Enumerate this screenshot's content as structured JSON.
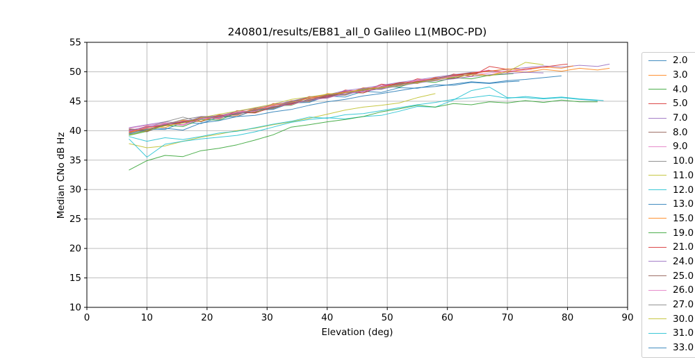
{
  "chart_data": {
    "type": "line",
    "title": "240801/results/EB81_all_0 Galileo L1(MBOC-PD)",
    "xlabel": "Elevation (deg)",
    "ylabel": "Median CNo dB Hz",
    "xlim": [
      0,
      90
    ],
    "ylim": [
      10,
      55
    ],
    "xticks": [
      0,
      10,
      20,
      30,
      40,
      50,
      60,
      70,
      80,
      90
    ],
    "yticks": [
      10,
      15,
      20,
      25,
      30,
      35,
      40,
      45,
      50,
      55
    ],
    "grid": true,
    "grid_color": "#b4b4b4",
    "axis_color": "#000000",
    "legend": {
      "position": "outside-right",
      "last_entry_clipped_by_image_edge": true,
      "entries": [
        {
          "label": "2.0",
          "color": "#1f77b4"
        },
        {
          "label": "3.0",
          "color": "#ff7f0e"
        },
        {
          "label": "4.0",
          "color": "#2ca02c"
        },
        {
          "label": "5.0",
          "color": "#d62728"
        },
        {
          "label": "7.0",
          "color": "#9467bd"
        },
        {
          "label": "8.0",
          "color": "#8c564b"
        },
        {
          "label": "9.0",
          "color": "#e377c2"
        },
        {
          "label": "10.0",
          "color": "#7f7f7f"
        },
        {
          "label": "11.0",
          "color": "#bcbd22"
        },
        {
          "label": "12.0",
          "color": "#17becf"
        },
        {
          "label": "13.0",
          "color": "#1f77b4"
        },
        {
          "label": "15.0",
          "color": "#ff7f0e"
        },
        {
          "label": "19.0",
          "color": "#2ca02c"
        },
        {
          "label": "21.0",
          "color": "#d62728"
        },
        {
          "label": "24.0",
          "color": "#9467bd"
        },
        {
          "label": "25.0",
          "color": "#8c564b"
        },
        {
          "label": "26.0",
          "color": "#e377c2"
        },
        {
          "label": "27.0",
          "color": "#7f7f7f"
        },
        {
          "label": "30.0",
          "color": "#bcbd22"
        },
        {
          "label": "31.0",
          "color": "#17becf"
        },
        {
          "label": "33.0",
          "color": "#1f77b4"
        }
      ]
    },
    "series": [
      {
        "name": "2.0",
        "color": "#1f77b4",
        "x": [
          7,
          10,
          13,
          16,
          19,
          22,
          25,
          28,
          31,
          34,
          37,
          40,
          43,
          46,
          49,
          52,
          55,
          58,
          61,
          64,
          67,
          70,
          72
        ],
        "y": [
          39.9,
          40.3,
          40.2,
          41.4,
          41.2,
          42.3,
          42.4,
          43.5,
          43.6,
          44.7,
          44.8,
          45.9,
          45.7,
          46.7,
          46.5,
          47.3,
          47.2,
          47.8,
          47.7,
          48.2,
          48.0,
          48.3,
          48.4
        ]
      },
      {
        "name": "3.0",
        "color": "#ff7f0e",
        "x": [
          7,
          10,
          13,
          16,
          19,
          22,
          25,
          28,
          31,
          34,
          37,
          40,
          43,
          46,
          49,
          52,
          55,
          58,
          61,
          64,
          67,
          70,
          73,
          76,
          79,
          82,
          85,
          87
        ],
        "y": [
          39.6,
          40.8,
          40.5,
          41.7,
          41.6,
          42.7,
          42.6,
          43.9,
          43.9,
          45.1,
          45.0,
          46.3,
          46.1,
          47.3,
          47.1,
          48.2,
          48.0,
          49.0,
          48.8,
          49.7,
          49.4,
          50.2,
          49.9,
          50.4,
          50.1,
          50.6,
          50.3,
          50.6
        ]
      },
      {
        "name": "4.0",
        "color": "#2ca02c",
        "x": [
          7,
          10,
          13,
          16,
          19,
          22,
          25,
          28,
          31,
          34,
          37,
          40,
          43,
          46,
          49,
          52,
          55,
          58,
          61,
          64,
          67,
          70,
          71
        ],
        "y": [
          39.2,
          39.9,
          40.9,
          40.7,
          41.9,
          41.8,
          43.0,
          43.1,
          44.2,
          44.3,
          45.4,
          45.5,
          46.5,
          46.4,
          47.5,
          47.4,
          48.4,
          48.2,
          49.0,
          48.8,
          49.4,
          49.6,
          49.7
        ]
      },
      {
        "name": "5.0",
        "color": "#d62728",
        "x": [
          7,
          10,
          13,
          16,
          19,
          22,
          25,
          28,
          31,
          34,
          37,
          40,
          43,
          46,
          49,
          52,
          55,
          58,
          61,
          64,
          67,
          70,
          72
        ],
        "y": [
          40.1,
          40.0,
          41.3,
          41.0,
          42.3,
          42.0,
          43.4,
          43.2,
          44.6,
          44.4,
          45.8,
          45.6,
          46.9,
          46.6,
          47.9,
          47.6,
          48.8,
          48.5,
          49.6,
          49.2,
          50.9,
          50.4,
          50.6
        ]
      },
      {
        "name": "7.0",
        "color": "#9467bd",
        "x": [
          7,
          10,
          13,
          16,
          19,
          22,
          25,
          28,
          31,
          34,
          37,
          40,
          43,
          46,
          49,
          52,
          55,
          58,
          61,
          64,
          67,
          70,
          73,
          76,
          79,
          82,
          85,
          87
        ],
        "y": [
          40.5,
          41.0,
          41.5,
          41.3,
          42.4,
          42.5,
          43.3,
          43.8,
          44.4,
          45.0,
          45.7,
          46.1,
          46.8,
          47.2,
          47.7,
          48.2,
          48.6,
          49.1,
          49.5,
          49.9,
          50.1,
          50.4,
          50.7,
          51.0,
          50.8,
          51.1,
          50.9,
          51.3
        ]
      },
      {
        "name": "8.0",
        "color": "#8c564b",
        "x": [
          7,
          10,
          13,
          16,
          19,
          22,
          25,
          28,
          31,
          34,
          37,
          40,
          43,
          46,
          49,
          52,
          55,
          58,
          61,
          64,
          67
        ],
        "y": [
          40.2,
          39.8,
          41.1,
          41.5,
          41.6,
          42.6,
          42.7,
          43.7,
          43.8,
          44.9,
          45.6,
          45.7,
          46.7,
          46.8,
          47.7,
          47.9,
          48.1,
          48.9,
          48.9,
          49.6,
          50.2
        ]
      },
      {
        "name": "9.0",
        "color": "#e377c2",
        "x": [
          7,
          10,
          13,
          16,
          19,
          22,
          25,
          28,
          31,
          34,
          37,
          40,
          43,
          46,
          49,
          52,
          55,
          58,
          61,
          64,
          67
        ],
        "y": [
          40.4,
          40.9,
          41.3,
          41.0,
          42.2,
          42.1,
          43.2,
          43.4,
          44.4,
          44.6,
          45.6,
          45.8,
          46.7,
          46.9,
          47.7,
          47.9,
          48.6,
          48.8,
          49.3,
          49.8,
          50.3
        ]
      },
      {
        "name": "10.0",
        "color": "#7f7f7f",
        "x": [
          7,
          10,
          13,
          16,
          19,
          22,
          25,
          28,
          31,
          34,
          37,
          40,
          43,
          46,
          49,
          52,
          55
        ],
        "y": [
          39.5,
          40.5,
          41.5,
          42.3,
          41.5,
          42.5,
          42.4,
          43.6,
          43.7,
          44.8,
          44.9,
          46.0,
          46.0,
          47.0,
          47.0,
          47.9,
          48.3
        ]
      },
      {
        "name": "11.0",
        "color": "#bcbd22",
        "x": [
          7,
          10,
          13,
          16,
          19,
          22,
          25,
          28,
          31,
          34,
          37,
          40,
          43,
          46,
          49,
          52,
          55,
          58
        ],
        "y": [
          37.8,
          37.1,
          37.4,
          38.2,
          38.9,
          39.4,
          40.0,
          40.4,
          41.0,
          41.5,
          42.1,
          42.8,
          43.5,
          44.0,
          44.3,
          44.7,
          45.6,
          46.3
        ]
      },
      {
        "name": "12.0",
        "color": "#17becf",
        "x": [
          7,
          10,
          13,
          16,
          19,
          22,
          25,
          28,
          31,
          34,
          37,
          40,
          43,
          46,
          49,
          52,
          55,
          58,
          61,
          64,
          67,
          70,
          73,
          76,
          79,
          82,
          85
        ],
        "y": [
          38.6,
          35.5,
          37.7,
          38.2,
          38.6,
          38.9,
          39.2,
          39.8,
          40.6,
          41.4,
          41.9,
          42.2,
          42.0,
          42.4,
          42.6,
          43.3,
          44.1,
          44.0,
          45.2,
          46.8,
          47.4,
          45.6,
          45.6,
          45.4,
          45.6,
          45.3,
          45.1
        ]
      },
      {
        "name": "13.0",
        "color": "#1f77b4",
        "x": [
          7,
          10,
          13,
          16,
          19,
          22,
          25,
          28,
          31,
          34,
          37,
          40,
          43,
          46,
          49,
          52,
          55,
          58,
          61,
          64,
          67,
          70,
          73,
          76,
          79
        ],
        "y": [
          39.4,
          40.1,
          40.4,
          40.1,
          41.3,
          41.7,
          42.4,
          42.6,
          43.2,
          43.6,
          44.3,
          44.9,
          45.3,
          45.9,
          46.3,
          46.8,
          47.3,
          47.5,
          47.9,
          48.3,
          48.1,
          48.5,
          48.7,
          49.0,
          49.3
        ]
      },
      {
        "name": "15.0",
        "color": "#ff7f0e",
        "x": [
          7,
          10,
          13,
          16,
          19,
          22,
          25,
          28,
          31,
          34,
          37,
          40,
          43,
          46,
          49,
          52,
          55,
          58,
          61,
          64,
          67,
          70,
          73,
          76,
          79,
          81
        ],
        "y": [
          39.7,
          40.4,
          41.1,
          41.8,
          41.6,
          42.6,
          42.9,
          43.6,
          44.3,
          44.8,
          45.5,
          46.1,
          46.4,
          47.1,
          47.4,
          48.0,
          48.4,
          48.9,
          49.4,
          49.8,
          50.1,
          50.5,
          50.3,
          50.8,
          50.6,
          51.0
        ]
      },
      {
        "name": "19.0",
        "color": "#2ca02c",
        "x": [
          7,
          10,
          13,
          16,
          19,
          22,
          25,
          28,
          31,
          34,
          37,
          40,
          43,
          46,
          49,
          52,
          55,
          58,
          61,
          64,
          67,
          70,
          73,
          76,
          79,
          82,
          85
        ],
        "y": [
          33.3,
          34.9,
          35.8,
          35.6,
          36.6,
          37.0,
          37.6,
          38.4,
          39.3,
          40.6,
          41.0,
          41.5,
          41.9,
          42.4,
          43.2,
          43.7,
          44.3,
          44.0,
          44.6,
          44.4,
          44.9,
          44.7,
          45.1,
          44.8,
          45.2,
          44.9,
          44.9
        ]
      },
      {
        "name": "21.0",
        "color": "#d62728",
        "x": [
          7,
          10,
          13,
          16,
          19,
          22,
          25,
          28,
          31,
          34,
          37,
          40,
          43,
          46,
          49,
          52,
          55,
          58,
          61,
          64,
          67,
          70,
          73,
          76,
          79,
          80
        ],
        "y": [
          39.8,
          40.6,
          40.9,
          41.5,
          42.0,
          42.4,
          43.1,
          43.0,
          44.0,
          44.5,
          45.3,
          45.9,
          46.6,
          46.4,
          47.5,
          48.1,
          48.3,
          48.9,
          49.4,
          49.7,
          50.2,
          49.9,
          50.5,
          50.8,
          51.2,
          51.3
        ]
      },
      {
        "name": "24.0",
        "color": "#9467bd",
        "x": [
          7,
          10,
          13,
          16,
          19,
          22,
          25,
          28,
          31,
          34,
          37,
          40,
          43,
          46,
          49,
          52,
          55,
          58,
          61,
          64,
          67,
          70,
          73,
          76
        ],
        "y": [
          40.0,
          40.7,
          41.1,
          41.6,
          42.1,
          42.6,
          42.8,
          43.5,
          44.1,
          44.7,
          45.1,
          45.6,
          46.2,
          46.7,
          47.1,
          47.6,
          48.1,
          48.5,
          48.8,
          49.2,
          49.5,
          49.7,
          49.9,
          49.8
        ]
      },
      {
        "name": "25.0",
        "color": "#8c564b",
        "x": [
          7,
          10,
          13,
          16,
          19,
          22,
          25,
          28,
          31,
          34,
          37,
          40,
          43,
          46,
          49,
          52,
          55,
          58,
          61,
          64
        ],
        "y": [
          40.3,
          40.1,
          41.0,
          41.3,
          42.0,
          42.3,
          43.0,
          43.4,
          44.0,
          44.6,
          45.2,
          45.7,
          46.4,
          46.9,
          47.4,
          47.8,
          48.3,
          48.7,
          49.2,
          49.8
        ]
      },
      {
        "name": "26.0",
        "color": "#e377c2",
        "x": [
          7,
          10,
          13,
          16,
          19,
          22,
          25,
          28,
          31,
          34,
          37,
          40,
          43,
          46,
          49,
          52,
          55,
          58,
          61,
          64,
          67,
          70,
          73,
          74
        ],
        "y": [
          39.9,
          40.5,
          41.2,
          40.9,
          42.0,
          42.3,
          43.1,
          43.3,
          44.2,
          44.4,
          45.3,
          45.5,
          46.4,
          46.6,
          47.5,
          47.7,
          48.5,
          48.7,
          49.2,
          49.5,
          49.8,
          50.1,
          50.3,
          50.4
        ]
      },
      {
        "name": "27.0",
        "color": "#7f7f7f",
        "x": [
          7,
          10,
          13,
          16,
          19,
          22,
          25,
          28,
          31,
          34,
          37,
          40,
          43,
          46,
          49,
          52,
          55,
          58,
          61
        ],
        "y": [
          39.6,
          40.2,
          41.0,
          41.9,
          42.4,
          42.2,
          42.9,
          43.5,
          43.9,
          45.0,
          45.1,
          46.1,
          46.2,
          47.1,
          47.2,
          48.0,
          48.1,
          48.8,
          49.5
        ]
      },
      {
        "name": "30.0",
        "color": "#bcbd22",
        "x": [
          7,
          10,
          13,
          16,
          19,
          22,
          25,
          28,
          31,
          34,
          37,
          40,
          43,
          46,
          49,
          52,
          55,
          58,
          61,
          64,
          67,
          70,
          73,
          76
        ],
        "y": [
          39.3,
          40.0,
          40.8,
          41.3,
          42.2,
          42.8,
          43.3,
          43.9,
          44.5,
          45.3,
          45.7,
          46.2,
          46.5,
          46.9,
          47.3,
          47.7,
          48.2,
          48.6,
          49.1,
          49.5,
          49.3,
          50.0,
          51.6,
          51.2
        ]
      },
      {
        "name": "31.0",
        "color": "#17becf",
        "x": [
          7,
          10,
          13,
          16,
          19,
          22,
          25,
          28,
          31,
          34,
          37,
          40,
          43,
          46,
          49,
          52,
          55,
          58,
          61,
          64,
          67,
          70,
          73,
          76,
          79,
          82,
          85,
          86
        ],
        "y": [
          39.0,
          38.2,
          38.8,
          38.5,
          39.0,
          39.6,
          39.9,
          40.5,
          41.1,
          41.6,
          42.3,
          42.1,
          42.7,
          42.9,
          43.4,
          43.9,
          44.4,
          44.8,
          45.3,
          45.6,
          46.0,
          45.5,
          45.8,
          45.5,
          45.7,
          45.4,
          45.2,
          45.1
        ]
      },
      {
        "name": "33.0",
        "color": "#1f77b4",
        "x": [],
        "y": []
      }
    ]
  }
}
